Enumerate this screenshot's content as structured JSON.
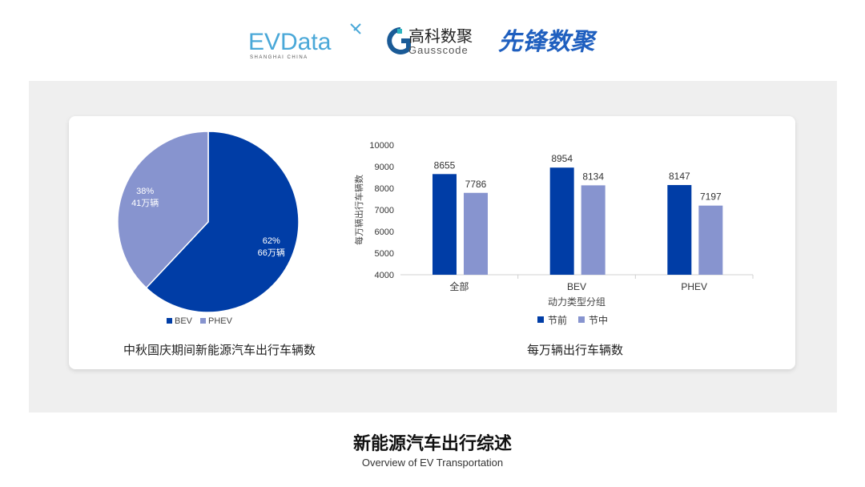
{
  "logos": {
    "evdata": "EVData",
    "evdata_sub": "SHANGHAI CHINA",
    "gauss_cn": "高科数聚",
    "gauss_en": "Gausscode",
    "xianfeng": "先锋数聚"
  },
  "colors": {
    "bev": "#003da6",
    "phev": "#8794cf",
    "before": "#003da6",
    "during": "#8794cf"
  },
  "footer": {
    "title": "新能源汽车出行综述",
    "subtitle": "Overview of EV Transportation"
  },
  "chart_data": [
    {
      "type": "pie",
      "title": "中秋国庆期间新能源汽车出行车辆数",
      "slices": [
        {
          "name": "BEV",
          "percent": 62,
          "label": "66万辆"
        },
        {
          "name": "PHEV",
          "percent": 38,
          "label": "41万辆"
        }
      ],
      "legend": "bottom"
    },
    {
      "type": "bar",
      "title": "每万辆出行车辆数",
      "xlabel": "动力类型分组",
      "ylabel": "每万辆出行车辆数",
      "categories": [
        "全部",
        "BEV",
        "PHEV"
      ],
      "series": [
        {
          "name": "节前",
          "values": [
            8655,
            8954,
            8147
          ]
        },
        {
          "name": "节中",
          "values": [
            7786,
            8134,
            7197
          ]
        }
      ],
      "ylim": [
        4000,
        10000
      ],
      "yticks": [
        4000,
        5000,
        6000,
        7000,
        8000,
        9000,
        10000
      ],
      "legend": "bottom",
      "grid": false
    }
  ]
}
